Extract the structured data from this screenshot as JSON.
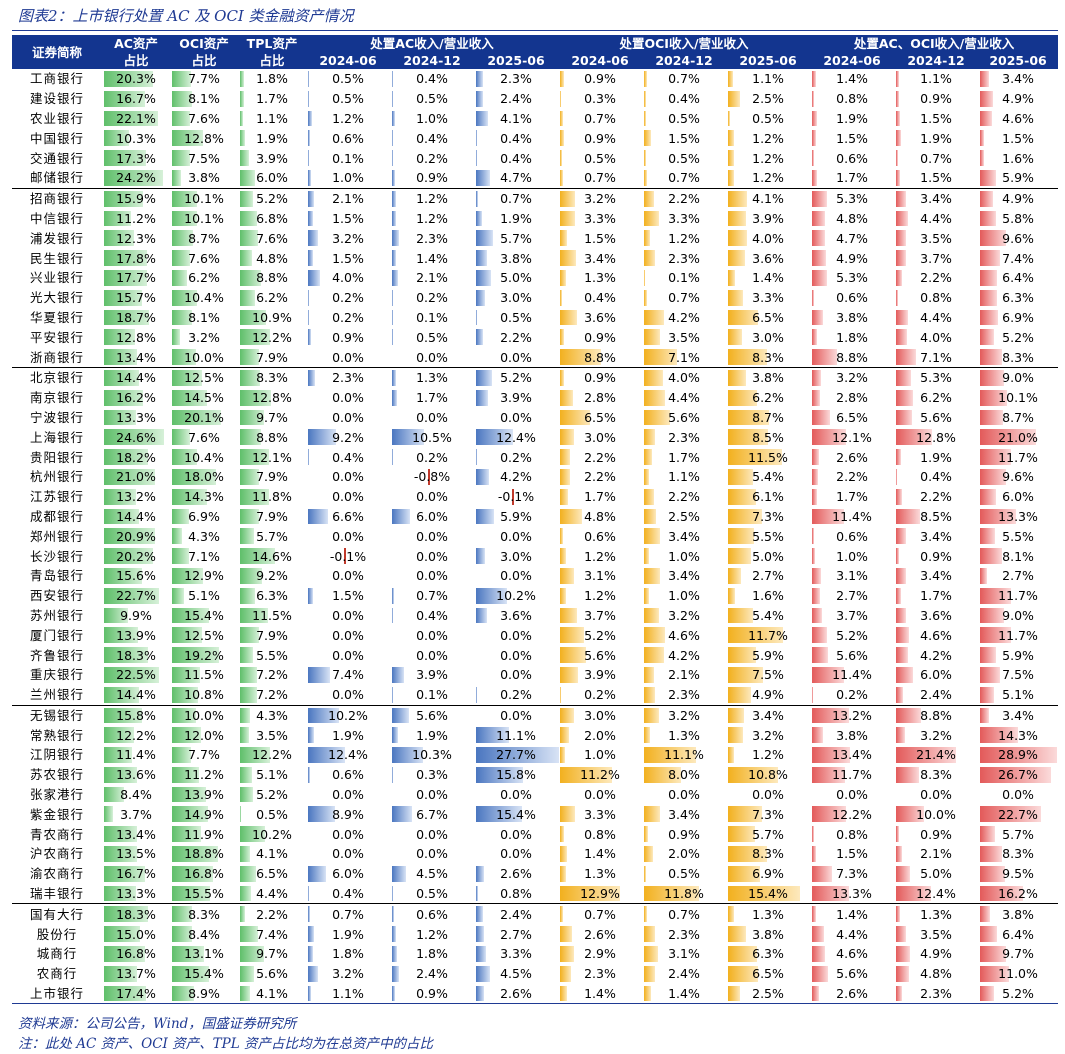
{
  "title": "图表2：上市银行处置 AC 及 OCI 类金融资产情况",
  "headers": {
    "name": "证券简称",
    "ac_share": "AC资产\n占比",
    "oci_share": "OCI资产\n占比",
    "tpl_share": "TPL资产\n占比",
    "group_ac": "处置AC收入/营业收入",
    "group_oci": "处置OCI收入/营业收入",
    "group_both": "处置AC、OCI收入/营业收入",
    "periods": [
      "2024-06",
      "2024-12",
      "2025-06"
    ]
  },
  "rows": [
    {
      "name": "工商银行",
      "v": [
        "20.3%",
        "7.7%",
        "1.8%",
        "0.5%",
        "0.4%",
        "2.3%",
        "0.9%",
        "0.7%",
        "1.1%",
        "1.4%",
        "1.1%",
        "3.4%"
      ]
    },
    {
      "name": "建设银行",
      "v": [
        "16.7%",
        "8.1%",
        "1.7%",
        "0.5%",
        "0.5%",
        "2.4%",
        "0.3%",
        "0.4%",
        "2.5%",
        "0.8%",
        "0.9%",
        "4.9%"
      ]
    },
    {
      "name": "农业银行",
      "v": [
        "22.1%",
        "7.6%",
        "1.1%",
        "1.2%",
        "1.0%",
        "4.1%",
        "0.7%",
        "0.5%",
        "0.5%",
        "1.9%",
        "1.5%",
        "4.6%"
      ]
    },
    {
      "name": "中国银行",
      "v": [
        "10.3%",
        "12.8%",
        "1.9%",
        "0.6%",
        "0.4%",
        "0.4%",
        "0.9%",
        "1.5%",
        "1.2%",
        "1.5%",
        "1.9%",
        "1.5%"
      ]
    },
    {
      "name": "交通银行",
      "v": [
        "17.3%",
        "7.5%",
        "3.9%",
        "0.1%",
        "0.2%",
        "0.4%",
        "0.5%",
        "0.5%",
        "1.2%",
        "0.6%",
        "0.7%",
        "1.6%"
      ]
    },
    {
      "name": "邮储银行",
      "v": [
        "24.2%",
        "3.8%",
        "6.0%",
        "1.0%",
        "0.9%",
        "4.7%",
        "0.7%",
        "0.7%",
        "1.2%",
        "1.7%",
        "1.5%",
        "5.9%"
      ]
    },
    {
      "name": "招商银行",
      "sep": true,
      "v": [
        "15.9%",
        "10.1%",
        "5.2%",
        "2.1%",
        "1.2%",
        "0.7%",
        "3.2%",
        "2.2%",
        "4.1%",
        "5.3%",
        "3.4%",
        "4.9%"
      ]
    },
    {
      "name": "中信银行",
      "v": [
        "11.2%",
        "10.1%",
        "6.8%",
        "1.5%",
        "1.2%",
        "1.9%",
        "3.3%",
        "3.3%",
        "3.9%",
        "4.8%",
        "4.4%",
        "5.8%"
      ]
    },
    {
      "name": "浦发银行",
      "v": [
        "12.3%",
        "8.7%",
        "7.6%",
        "3.2%",
        "2.3%",
        "5.7%",
        "1.5%",
        "1.2%",
        "4.0%",
        "4.7%",
        "3.5%",
        "9.6%"
      ]
    },
    {
      "name": "民生银行",
      "v": [
        "17.8%",
        "7.6%",
        "4.8%",
        "1.5%",
        "1.4%",
        "3.8%",
        "3.4%",
        "2.3%",
        "3.6%",
        "4.9%",
        "3.7%",
        "7.4%"
      ]
    },
    {
      "name": "兴业银行",
      "v": [
        "17.7%",
        "6.2%",
        "8.8%",
        "4.0%",
        "2.1%",
        "5.0%",
        "1.3%",
        "0.1%",
        "1.4%",
        "5.3%",
        "2.2%",
        "6.4%"
      ]
    },
    {
      "name": "光大银行",
      "v": [
        "15.7%",
        "10.4%",
        "6.2%",
        "0.2%",
        "0.2%",
        "3.0%",
        "0.4%",
        "0.7%",
        "3.3%",
        "0.6%",
        "0.8%",
        "6.3%"
      ]
    },
    {
      "name": "华夏银行",
      "v": [
        "18.7%",
        "8.1%",
        "10.9%",
        "0.2%",
        "0.1%",
        "0.5%",
        "3.6%",
        "4.2%",
        "6.5%",
        "3.8%",
        "4.4%",
        "6.9%"
      ]
    },
    {
      "name": "平安银行",
      "v": [
        "12.8%",
        "3.2%",
        "12.2%",
        "0.9%",
        "0.5%",
        "2.2%",
        "0.9%",
        "3.5%",
        "3.0%",
        "1.8%",
        "4.0%",
        "5.2%"
      ]
    },
    {
      "name": "浙商银行",
      "v": [
        "13.4%",
        "10.0%",
        "7.9%",
        "0.0%",
        "0.0%",
        "0.0%",
        "8.8%",
        "7.1%",
        "8.3%",
        "8.8%",
        "7.1%",
        "8.3%"
      ]
    },
    {
      "name": "北京银行",
      "sep": true,
      "v": [
        "14.4%",
        "12.5%",
        "8.3%",
        "2.3%",
        "1.3%",
        "5.2%",
        "0.9%",
        "4.0%",
        "3.8%",
        "3.2%",
        "5.3%",
        "9.0%"
      ]
    },
    {
      "name": "南京银行",
      "v": [
        "16.2%",
        "14.5%",
        "12.8%",
        "0.0%",
        "1.7%",
        "3.9%",
        "2.8%",
        "4.4%",
        "6.2%",
        "2.8%",
        "6.2%",
        "10.1%"
      ]
    },
    {
      "name": "宁波银行",
      "v": [
        "13.3%",
        "20.1%",
        "9.7%",
        "0.0%",
        "0.0%",
        "0.0%",
        "6.5%",
        "5.6%",
        "8.7%",
        "6.5%",
        "5.6%",
        "8.7%"
      ]
    },
    {
      "name": "上海银行",
      "v": [
        "24.6%",
        "7.6%",
        "8.8%",
        "9.2%",
        "10.5%",
        "12.4%",
        "3.0%",
        "2.3%",
        "8.5%",
        "12.1%",
        "12.8%",
        "21.0%"
      ]
    },
    {
      "name": "贵阳银行",
      "v": [
        "18.2%",
        "10.4%",
        "12.1%",
        "0.4%",
        "0.2%",
        "0.2%",
        "2.2%",
        "1.7%",
        "11.5%",
        "2.6%",
        "1.9%",
        "11.7%"
      ]
    },
    {
      "name": "杭州银行",
      "v": [
        "21.0%",
        "18.0%",
        "7.9%",
        "0.0%",
        "-0.8%",
        "4.2%",
        "2.2%",
        "1.1%",
        "5.4%",
        "2.2%",
        "0.4%",
        "9.6%"
      ]
    },
    {
      "name": "江苏银行",
      "v": [
        "13.2%",
        "14.3%",
        "11.8%",
        "0.0%",
        "0.0%",
        "-0.1%",
        "1.7%",
        "2.2%",
        "6.1%",
        "1.7%",
        "2.2%",
        "6.0%"
      ]
    },
    {
      "name": "成都银行",
      "v": [
        "14.4%",
        "6.9%",
        "7.9%",
        "6.6%",
        "6.0%",
        "5.9%",
        "4.8%",
        "2.5%",
        "7.3%",
        "11.4%",
        "8.5%",
        "13.3%"
      ]
    },
    {
      "name": "郑州银行",
      "v": [
        "20.9%",
        "4.3%",
        "5.7%",
        "0.0%",
        "0.0%",
        "0.0%",
        "0.6%",
        "3.4%",
        "5.5%",
        "0.6%",
        "3.4%",
        "5.5%"
      ]
    },
    {
      "name": "长沙银行",
      "v": [
        "20.2%",
        "7.1%",
        "14.6%",
        "-0.1%",
        "0.0%",
        "3.0%",
        "1.2%",
        "1.0%",
        "5.0%",
        "1.0%",
        "0.9%",
        "8.1%"
      ]
    },
    {
      "name": "青岛银行",
      "v": [
        "15.6%",
        "12.9%",
        "9.2%",
        "0.0%",
        "0.0%",
        "0.0%",
        "3.1%",
        "3.4%",
        "2.7%",
        "3.1%",
        "3.4%",
        "2.7%"
      ]
    },
    {
      "name": "西安银行",
      "v": [
        "22.7%",
        "5.1%",
        "6.3%",
        "1.5%",
        "0.7%",
        "10.2%",
        "1.2%",
        "1.0%",
        "1.6%",
        "2.7%",
        "1.7%",
        "11.7%"
      ]
    },
    {
      "name": "苏州银行",
      "v": [
        "9.9%",
        "15.4%",
        "11.5%",
        "0.0%",
        "0.4%",
        "3.6%",
        "3.7%",
        "3.2%",
        "5.4%",
        "3.7%",
        "3.6%",
        "9.0%"
      ]
    },
    {
      "name": "厦门银行",
      "v": [
        "13.9%",
        "12.5%",
        "7.9%",
        "0.0%",
        "0.0%",
        "0.0%",
        "5.2%",
        "4.6%",
        "11.7%",
        "5.2%",
        "4.6%",
        "11.7%"
      ]
    },
    {
      "name": "齐鲁银行",
      "v": [
        "18.3%",
        "19.2%",
        "5.5%",
        "0.0%",
        "0.0%",
        "0.0%",
        "5.6%",
        "4.2%",
        "5.9%",
        "5.6%",
        "4.2%",
        "5.9%"
      ]
    },
    {
      "name": "重庆银行",
      "v": [
        "22.5%",
        "11.5%",
        "7.2%",
        "7.4%",
        "3.9%",
        "0.0%",
        "3.9%",
        "2.1%",
        "7.5%",
        "11.4%",
        "6.0%",
        "7.5%"
      ]
    },
    {
      "name": "兰州银行",
      "v": [
        "14.4%",
        "10.8%",
        "7.2%",
        "0.0%",
        "0.1%",
        "0.2%",
        "0.2%",
        "2.3%",
        "4.9%",
        "0.2%",
        "2.4%",
        "5.1%"
      ]
    },
    {
      "name": "无锡银行",
      "sep": true,
      "v": [
        "15.8%",
        "10.0%",
        "4.3%",
        "10.2%",
        "5.6%",
        "0.0%",
        "3.0%",
        "3.2%",
        "3.4%",
        "13.2%",
        "8.8%",
        "3.4%"
      ]
    },
    {
      "name": "常熟银行",
      "v": [
        "12.2%",
        "12.0%",
        "3.5%",
        "1.9%",
        "1.9%",
        "11.1%",
        "2.0%",
        "1.3%",
        "3.2%",
        "3.8%",
        "3.2%",
        "14.3%"
      ]
    },
    {
      "name": "江阴银行",
      "v": [
        "11.4%",
        "7.7%",
        "12.2%",
        "12.4%",
        "10.3%",
        "27.7%",
        "1.0%",
        "11.1%",
        "1.2%",
        "13.4%",
        "21.4%",
        "28.9%"
      ]
    },
    {
      "name": "苏农银行",
      "v": [
        "13.6%",
        "11.2%",
        "5.1%",
        "0.6%",
        "0.3%",
        "15.8%",
        "11.2%",
        "8.0%",
        "10.8%",
        "11.7%",
        "8.3%",
        "26.7%"
      ]
    },
    {
      "name": "张家港行",
      "v": [
        "8.4%",
        "13.9%",
        "5.2%",
        "0.0%",
        "0.0%",
        "0.0%",
        "0.0%",
        "0.0%",
        "0.0%",
        "0.0%",
        "0.0%",
        "0.0%"
      ]
    },
    {
      "name": "紫金银行",
      "v": [
        "3.7%",
        "14.9%",
        "0.5%",
        "8.9%",
        "6.7%",
        "15.4%",
        "3.3%",
        "3.4%",
        "7.3%",
        "12.2%",
        "10.0%",
        "22.7%"
      ]
    },
    {
      "name": "青农商行",
      "v": [
        "13.4%",
        "11.9%",
        "10.2%",
        "0.0%",
        "0.0%",
        "0.0%",
        "0.8%",
        "0.9%",
        "5.7%",
        "0.8%",
        "0.9%",
        "5.7%"
      ]
    },
    {
      "name": "沪农商行",
      "v": [
        "13.5%",
        "18.8%",
        "4.1%",
        "0.0%",
        "0.0%",
        "0.0%",
        "1.4%",
        "2.0%",
        "8.3%",
        "1.5%",
        "2.1%",
        "8.3%"
      ]
    },
    {
      "name": "渝农商行",
      "v": [
        "16.7%",
        "16.8%",
        "6.5%",
        "6.0%",
        "4.5%",
        "2.6%",
        "1.3%",
        "0.5%",
        "6.9%",
        "7.3%",
        "5.0%",
        "9.5%"
      ]
    },
    {
      "name": "瑞丰银行",
      "v": [
        "13.3%",
        "15.5%",
        "4.4%",
        "0.4%",
        "0.5%",
        "0.8%",
        "12.9%",
        "11.8%",
        "15.4%",
        "13.3%",
        "12.4%",
        "16.2%"
      ]
    },
    {
      "name": "国有大行",
      "sep": true,
      "v": [
        "18.3%",
        "8.3%",
        "2.2%",
        "0.7%",
        "0.6%",
        "2.4%",
        "0.7%",
        "0.7%",
        "1.3%",
        "1.4%",
        "1.3%",
        "3.8%"
      ]
    },
    {
      "name": "股份行",
      "v": [
        "15.0%",
        "8.4%",
        "7.4%",
        "1.9%",
        "1.2%",
        "2.7%",
        "2.6%",
        "2.3%",
        "3.8%",
        "4.4%",
        "3.5%",
        "6.4%"
      ]
    },
    {
      "name": "城商行",
      "v": [
        "16.8%",
        "13.1%",
        "9.7%",
        "1.8%",
        "1.8%",
        "3.3%",
        "2.9%",
        "3.1%",
        "6.3%",
        "4.6%",
        "4.9%",
        "9.7%"
      ]
    },
    {
      "name": "农商行",
      "v": [
        "13.7%",
        "15.4%",
        "5.6%",
        "3.2%",
        "2.4%",
        "4.5%",
        "2.3%",
        "2.4%",
        "6.5%",
        "5.6%",
        "4.8%",
        "11.0%"
      ]
    },
    {
      "name": "上市银行",
      "v": [
        "17.4%",
        "8.9%",
        "4.1%",
        "1.1%",
        "0.9%",
        "2.6%",
        "1.4%",
        "1.4%",
        "2.5%",
        "2.6%",
        "2.3%",
        "5.2%"
      ]
    }
  ],
  "source": "资料来源：公司公告，Wind，国盛证券研究所",
  "note": "注：此处 AC 资产、OCI 资产、TPL 资产占比均为在总资产中的占比",
  "colors": {
    "header_bg": "#13358f",
    "green": "#5fbf6a",
    "blue": "#4a76c0",
    "orange": "#f2b01e",
    "red": "#e35a5a"
  }
}
